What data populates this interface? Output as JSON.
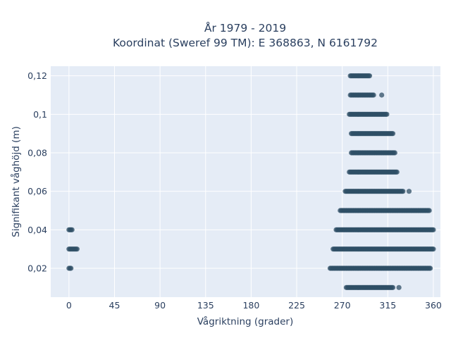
{
  "chart_data": {
    "type": "scatter",
    "title_line1": "År 1979 - 2019",
    "title_line2": "Koordinat (Sweref 99 TM): E 368863, N 6161792",
    "xlabel": "Vågriktning (grader)",
    "ylabel": "Signifikant våghöjd (m)",
    "xlim": [
      -18,
      367
    ],
    "ylim": [
      0.005,
      0.125
    ],
    "x_ticks": [
      0,
      45,
      90,
      135,
      180,
      225,
      270,
      315,
      360
    ],
    "x_tick_labels": [
      "0",
      "45",
      "90",
      "135",
      "180",
      "225",
      "270",
      "315",
      "360"
    ],
    "y_ticks": [
      0.02,
      0.04,
      0.06,
      0.08,
      0.1,
      0.12
    ],
    "y_tick_labels": [
      "0,02",
      "0,04",
      "0,06",
      "0,08",
      "0,1",
      "0,12"
    ],
    "grid": true,
    "marker_color": "#2f4f66",
    "background_color": "#e5ecf6",
    "series": [
      {
        "y": 0.12,
        "x_ranges": [
          [
            278,
            297
          ]
        ]
      },
      {
        "y": 0.11,
        "x_ranges": [
          [
            278,
            301
          ]
        ],
        "x_points": [
          309
        ]
      },
      {
        "y": 0.1,
        "x_ranges": [
          [
            277,
            314
          ]
        ]
      },
      {
        "y": 0.09,
        "x_ranges": [
          [
            279,
            320
          ]
        ]
      },
      {
        "y": 0.08,
        "x_ranges": [
          [
            279,
            322
          ]
        ]
      },
      {
        "y": 0.07,
        "x_ranges": [
          [
            277,
            324
          ]
        ]
      },
      {
        "y": 0.06,
        "x_ranges": [
          [
            273,
            330
          ]
        ],
        "x_points": [
          336
        ]
      },
      {
        "y": 0.05,
        "x_ranges": [
          [
            268,
            356
          ]
        ]
      },
      {
        "y": 0.04,
        "x_ranges": [
          [
            0,
            3
          ],
          [
            264,
            360
          ]
        ]
      },
      {
        "y": 0.03,
        "x_ranges": [
          [
            0,
            8
          ],
          [
            261,
            360
          ]
        ]
      },
      {
        "y": 0.02,
        "x_ranges": [
          [
            0,
            2
          ],
          [
            258,
            357
          ]
        ]
      },
      {
        "y": 0.01,
        "x_ranges": [
          [
            274,
            320
          ]
        ],
        "x_points": [
          326
        ]
      }
    ]
  }
}
